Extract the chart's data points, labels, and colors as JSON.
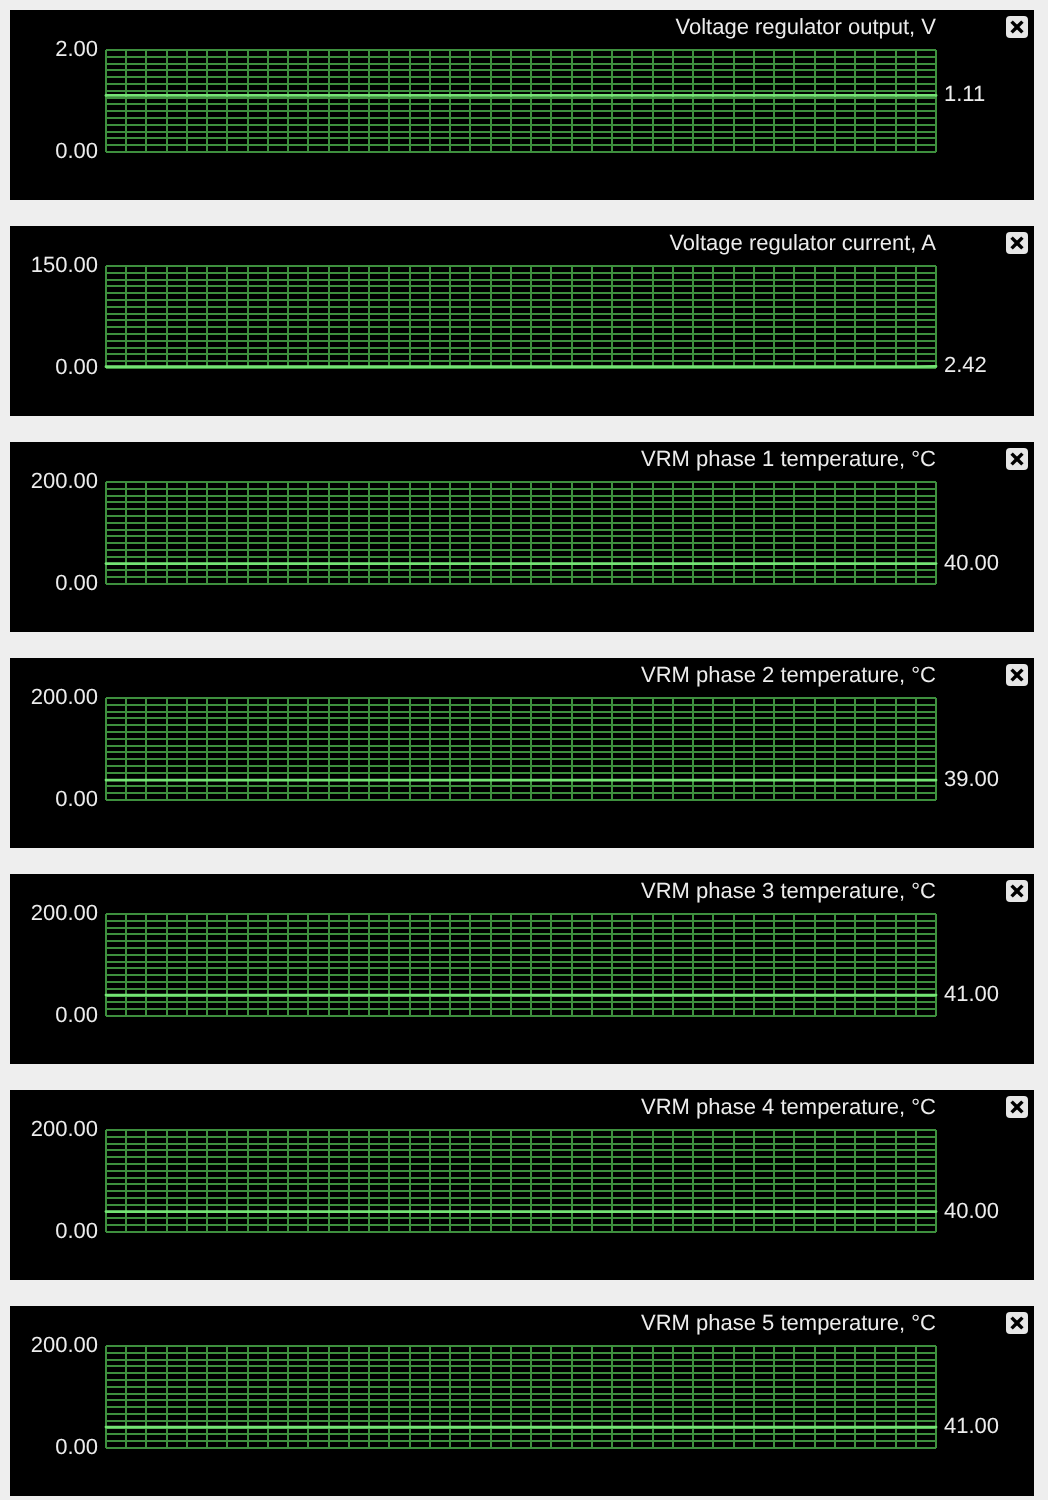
{
  "chart_data": [
    {
      "type": "line",
      "title": "Voltage regulator output, V",
      "categories": [
        null,
        null,
        null,
        null,
        null,
        null,
        null,
        null,
        null,
        null,
        null,
        null,
        null,
        null,
        null,
        null,
        null,
        null,
        null,
        null,
        null,
        null,
        null,
        null,
        null,
        null,
        null,
        null,
        null,
        null,
        null,
        null,
        null,
        null,
        null,
        null,
        null,
        null,
        null,
        null,
        null,
        null
      ],
      "series": [
        {
          "color": "#74e374",
          "values": [
            1.11,
            1.11,
            1.11,
            1.11,
            1.11,
            1.11,
            1.11,
            1.11,
            1.11,
            1.11,
            1.11,
            1.11,
            1.11,
            1.11,
            1.11,
            1.11,
            1.11,
            1.11,
            1.11,
            1.11,
            1.11,
            1.11,
            1.11,
            1.11,
            1.11,
            1.11,
            1.11,
            1.11,
            1.11,
            1.11,
            1.11,
            1.11,
            1.11,
            1.11,
            1.11,
            1.11,
            1.11,
            1.11,
            1.11,
            1.11,
            1.11,
            1.11
          ],
          "value_labels": [
            null,
            null,
            null,
            null,
            null,
            null,
            null,
            null,
            null,
            null,
            null,
            null,
            null,
            null,
            null,
            null,
            null,
            null,
            null,
            null,
            null,
            null,
            null,
            null,
            null,
            null,
            null,
            null,
            null,
            null,
            null,
            null,
            null,
            null,
            null,
            null,
            null,
            null,
            null,
            null,
            null,
            "1.11"
          ]
        }
      ],
      "ylim": [
        0,
        2
      ],
      "yticks": [
        {
          "value": 0,
          "label": "0.00"
        },
        {
          "value": 0.133,
          "label": null
        },
        {
          "value": 0.267,
          "label": null
        },
        {
          "value": 0.4,
          "label": null
        },
        {
          "value": 0.533,
          "label": null
        },
        {
          "value": 0.667,
          "label": null
        },
        {
          "value": 0.8,
          "label": null
        },
        {
          "value": 0.933,
          "label": null
        },
        {
          "value": 1.067,
          "label": null
        },
        {
          "value": 1.2,
          "label": null
        },
        {
          "value": 1.333,
          "label": null
        },
        {
          "value": 1.467,
          "label": null
        },
        {
          "value": 1.6,
          "label": null
        },
        {
          "value": 1.733,
          "label": null
        },
        {
          "value": 1.867,
          "label": null
        },
        {
          "value": 2,
          "label": "2.00"
        }
      ],
      "grid": true,
      "tick_labels": "y"
    },
    {
      "type": "line",
      "title": "Voltage regulator current, A",
      "categories": [
        null,
        null,
        null,
        null,
        null,
        null,
        null,
        null,
        null,
        null,
        null,
        null,
        null,
        null,
        null,
        null,
        null,
        null,
        null,
        null,
        null,
        null,
        null,
        null,
        null,
        null,
        null,
        null,
        null,
        null,
        null,
        null,
        null,
        null,
        null,
        null,
        null,
        null,
        null,
        null,
        null,
        null
      ],
      "series": [
        {
          "color": "#74e374",
          "values": [
            2,
            2,
            2,
            2,
            2,
            2,
            2,
            2,
            2,
            2,
            2,
            2,
            2,
            2,
            2,
            2,
            2,
            2,
            2,
            2,
            2,
            2,
            2,
            2,
            2,
            2,
            2,
            2,
            2,
            2,
            2,
            2,
            2,
            2,
            2,
            2,
            2,
            2,
            2,
            2,
            2,
            2.42
          ],
          "value_labels": [
            null,
            null,
            null,
            null,
            null,
            null,
            null,
            null,
            null,
            null,
            null,
            null,
            null,
            null,
            null,
            null,
            null,
            null,
            null,
            null,
            null,
            null,
            null,
            null,
            null,
            null,
            null,
            null,
            null,
            null,
            null,
            null,
            null,
            null,
            null,
            null,
            null,
            null,
            null,
            null,
            null,
            "2.42"
          ]
        }
      ],
      "ylim": [
        0,
        150
      ],
      "yticks": [
        {
          "value": 0,
          "label": "0.00"
        },
        {
          "value": 10,
          "label": null
        },
        {
          "value": 20,
          "label": null
        },
        {
          "value": 30,
          "label": null
        },
        {
          "value": 40,
          "label": null
        },
        {
          "value": 50,
          "label": null
        },
        {
          "value": 60,
          "label": null
        },
        {
          "value": 70,
          "label": null
        },
        {
          "value": 80,
          "label": null
        },
        {
          "value": 90,
          "label": null
        },
        {
          "value": 100,
          "label": null
        },
        {
          "value": 110,
          "label": null
        },
        {
          "value": 120,
          "label": null
        },
        {
          "value": 130,
          "label": null
        },
        {
          "value": 140,
          "label": null
        },
        {
          "value": 150,
          "label": "150.00"
        }
      ],
      "grid": true,
      "tick_labels": "y"
    },
    {
      "type": "line",
      "title": "VRM phase 1 temperature, °C",
      "categories": [
        null,
        null,
        null,
        null,
        null,
        null,
        null,
        null,
        null,
        null,
        null,
        null,
        null,
        null,
        null,
        null,
        null,
        null,
        null,
        null,
        null,
        null,
        null,
        null,
        null,
        null,
        null,
        null,
        null,
        null,
        null,
        null,
        null,
        null,
        null,
        null,
        null,
        null,
        null,
        null,
        null,
        null
      ],
      "series": [
        {
          "color": "#74e374",
          "values": [
            40,
            40,
            40,
            40,
            40,
            40,
            40,
            40,
            40,
            40,
            40,
            40,
            40,
            40,
            40,
            40,
            40,
            40,
            40,
            40,
            40,
            40,
            40,
            40,
            40,
            40,
            40,
            40,
            40,
            40,
            40,
            40,
            40,
            40,
            40,
            40,
            40,
            40,
            40,
            40,
            40,
            40
          ],
          "value_labels": [
            null,
            null,
            null,
            null,
            null,
            null,
            null,
            null,
            null,
            null,
            null,
            null,
            null,
            null,
            null,
            null,
            null,
            null,
            null,
            null,
            null,
            null,
            null,
            null,
            null,
            null,
            null,
            null,
            null,
            null,
            null,
            null,
            null,
            null,
            null,
            null,
            null,
            null,
            null,
            null,
            null,
            "40.00"
          ]
        }
      ],
      "ylim": [
        0,
        200
      ],
      "yticks": [
        {
          "value": 0,
          "label": "0.00"
        },
        {
          "value": 13.33,
          "label": null
        },
        {
          "value": 26.67,
          "label": null
        },
        {
          "value": 53.33,
          "label": null
        },
        {
          "value": 66.67,
          "label": null
        },
        {
          "value": 80,
          "label": null
        },
        {
          "value": 93.33,
          "label": null
        },
        {
          "value": 106.67,
          "label": null
        },
        {
          "value": 120,
          "label": null
        },
        {
          "value": 133.33,
          "label": null
        },
        {
          "value": 146.67,
          "label": null
        },
        {
          "value": 160,
          "label": null
        },
        {
          "value": 173.33,
          "label": null
        },
        {
          "value": 186.67,
          "label": null
        },
        {
          "value": 200,
          "label": "200.00"
        }
      ],
      "grid": true,
      "tick_labels": "y"
    },
    {
      "type": "line",
      "title": "VRM phase 2 temperature, °C",
      "categories": [
        null,
        null,
        null,
        null,
        null,
        null,
        null,
        null,
        null,
        null,
        null,
        null,
        null,
        null,
        null,
        null,
        null,
        null,
        null,
        null,
        null,
        null,
        null,
        null,
        null,
        null,
        null,
        null,
        null,
        null,
        null,
        null,
        null,
        null,
        null,
        null,
        null,
        null,
        null,
        null,
        null,
        null
      ],
      "series": [
        {
          "color": "#74e374",
          "values": [
            39,
            39,
            39,
            39,
            39,
            39,
            39,
            39,
            39,
            39,
            39,
            39,
            39,
            39,
            39,
            39,
            39,
            39,
            39,
            39,
            39,
            39,
            39,
            39,
            39,
            39,
            39,
            39,
            39,
            39,
            39,
            39,
            39,
            39,
            39,
            39,
            39,
            39,
            39,
            39,
            39,
            39
          ],
          "value_labels": [
            null,
            null,
            null,
            null,
            null,
            null,
            null,
            null,
            null,
            null,
            null,
            null,
            null,
            null,
            null,
            null,
            null,
            null,
            null,
            null,
            null,
            null,
            null,
            null,
            null,
            null,
            null,
            null,
            null,
            null,
            null,
            null,
            null,
            null,
            null,
            null,
            null,
            null,
            null,
            null,
            null,
            "39.00"
          ]
        }
      ],
      "ylim": [
        0,
        200
      ],
      "yticks": [
        {
          "value": 0,
          "label": "0.00"
        },
        {
          "value": 13.33,
          "label": null
        },
        {
          "value": 26.67,
          "label": null
        },
        {
          "value": 53.33,
          "label": null
        },
        {
          "value": 66.67,
          "label": null
        },
        {
          "value": 80,
          "label": null
        },
        {
          "value": 93.33,
          "label": null
        },
        {
          "value": 106.67,
          "label": null
        },
        {
          "value": 120,
          "label": null
        },
        {
          "value": 133.33,
          "label": null
        },
        {
          "value": 146.67,
          "label": null
        },
        {
          "value": 160,
          "label": null
        },
        {
          "value": 173.33,
          "label": null
        },
        {
          "value": 186.67,
          "label": null
        },
        {
          "value": 200,
          "label": "200.00"
        }
      ],
      "grid": true,
      "tick_labels": "y"
    },
    {
      "type": "line",
      "title": "VRM phase 3 temperature, °C",
      "categories": [
        null,
        null,
        null,
        null,
        null,
        null,
        null,
        null,
        null,
        null,
        null,
        null,
        null,
        null,
        null,
        null,
        null,
        null,
        null,
        null,
        null,
        null,
        null,
        null,
        null,
        null,
        null,
        null,
        null,
        null,
        null,
        null,
        null,
        null,
        null,
        null,
        null,
        null,
        null,
        null,
        null,
        null
      ],
      "series": [
        {
          "color": "#74e374",
          "values": [
            41,
            41,
            41,
            41,
            41,
            41,
            41,
            41,
            41,
            41,
            41,
            41,
            41,
            41,
            41,
            41,
            41,
            41,
            41,
            41,
            41,
            41,
            41,
            41,
            41,
            41,
            41,
            41,
            41,
            41,
            41,
            41,
            41,
            41,
            41,
            41,
            41,
            41,
            41,
            41,
            41,
            41
          ],
          "value_labels": [
            null,
            null,
            null,
            null,
            null,
            null,
            null,
            null,
            null,
            null,
            null,
            null,
            null,
            null,
            null,
            null,
            null,
            null,
            null,
            null,
            null,
            null,
            null,
            null,
            null,
            null,
            null,
            null,
            null,
            null,
            null,
            null,
            null,
            null,
            null,
            null,
            null,
            null,
            null,
            null,
            null,
            "41.00"
          ]
        }
      ],
      "ylim": [
        0,
        200
      ],
      "yticks": [
        {
          "value": 0,
          "label": "0.00"
        },
        {
          "value": 13.33,
          "label": null
        },
        {
          "value": 26.67,
          "label": null
        },
        {
          "value": 40,
          "label": null
        },
        {
          "value": 53.33,
          "label": null
        },
        {
          "value": 66.67,
          "label": null
        },
        {
          "value": 80,
          "label": null
        },
        {
          "value": 93.33,
          "label": null
        },
        {
          "value": 106.67,
          "label": null
        },
        {
          "value": 120,
          "label": null
        },
        {
          "value": 133.33,
          "label": null
        },
        {
          "value": 146.67,
          "label": null
        },
        {
          "value": 160,
          "label": null
        },
        {
          "value": 173.33,
          "label": null
        },
        {
          "value": 186.67,
          "label": null
        },
        {
          "value": 200,
          "label": "200.00"
        }
      ],
      "grid": true,
      "tick_labels": "y"
    },
    {
      "type": "line",
      "title": "VRM phase 4 temperature, °C",
      "categories": [
        null,
        null,
        null,
        null,
        null,
        null,
        null,
        null,
        null,
        null,
        null,
        null,
        null,
        null,
        null,
        null,
        null,
        null,
        null,
        null,
        null,
        null,
        null,
        null,
        null,
        null,
        null,
        null,
        null,
        null,
        null,
        null,
        null,
        null,
        null,
        null,
        null,
        null,
        null,
        null,
        null,
        null
      ],
      "series": [
        {
          "color": "#74e374",
          "values": [
            40,
            40,
            40,
            40,
            40,
            40,
            40,
            40,
            40,
            40,
            40,
            40,
            40,
            40,
            40,
            40,
            40,
            40,
            40,
            40,
            40,
            40,
            40,
            40,
            40,
            40,
            40,
            40,
            40,
            40,
            40,
            40,
            40,
            40,
            40,
            40,
            40,
            40,
            40,
            40,
            40,
            40
          ],
          "value_labels": [
            null,
            null,
            null,
            null,
            null,
            null,
            null,
            null,
            null,
            null,
            null,
            null,
            null,
            null,
            null,
            null,
            null,
            null,
            null,
            null,
            null,
            null,
            null,
            null,
            null,
            null,
            null,
            null,
            null,
            null,
            null,
            null,
            null,
            null,
            null,
            null,
            null,
            null,
            null,
            null,
            null,
            "40.00"
          ]
        }
      ],
      "ylim": [
        0,
        200
      ],
      "yticks": [
        {
          "value": 0,
          "label": "0.00"
        },
        {
          "value": 13.33,
          "label": null
        },
        {
          "value": 26.67,
          "label": null
        },
        {
          "value": 53.33,
          "label": null
        },
        {
          "value": 66.67,
          "label": null
        },
        {
          "value": 80,
          "label": null
        },
        {
          "value": 93.33,
          "label": null
        },
        {
          "value": 106.67,
          "label": null
        },
        {
          "value": 120,
          "label": null
        },
        {
          "value": 133.33,
          "label": null
        },
        {
          "value": 146.67,
          "label": null
        },
        {
          "value": 160,
          "label": null
        },
        {
          "value": 173.33,
          "label": null
        },
        {
          "value": 186.67,
          "label": null
        },
        {
          "value": 200,
          "label": "200.00"
        }
      ],
      "grid": true,
      "tick_labels": "y"
    },
    {
      "type": "line",
      "title": "VRM phase 5 temperature, °C",
      "categories": [
        null,
        null,
        null,
        null,
        null,
        null,
        null,
        null,
        null,
        null,
        null,
        null,
        null,
        null,
        null,
        null,
        null,
        null,
        null,
        null,
        null,
        null,
        null,
        null,
        null,
        null,
        null,
        null,
        null,
        null,
        null,
        null,
        null,
        null,
        null,
        null,
        null,
        null,
        null,
        null,
        null,
        null
      ],
      "series": [
        {
          "color": "#74e374",
          "values": [
            41,
            41,
            41,
            41,
            41,
            41,
            41,
            41,
            41,
            41,
            41,
            41,
            41,
            41,
            41,
            41,
            41,
            41,
            41,
            41,
            41,
            41,
            41,
            41,
            41,
            41,
            41,
            41,
            41,
            41,
            41,
            41,
            41,
            41,
            41,
            41,
            41,
            41,
            41,
            41,
            41,
            41
          ],
          "value_labels": [
            null,
            null,
            null,
            null,
            null,
            null,
            null,
            null,
            null,
            null,
            null,
            null,
            null,
            null,
            null,
            null,
            null,
            null,
            null,
            null,
            null,
            null,
            null,
            null,
            null,
            null,
            null,
            null,
            null,
            null,
            null,
            null,
            null,
            null,
            null,
            null,
            null,
            null,
            null,
            null,
            null,
            "41.00"
          ]
        }
      ],
      "ylim": [
        0,
        200
      ],
      "yticks": [
        {
          "value": 0,
          "label": "0.00"
        },
        {
          "value": 13.33,
          "label": null
        },
        {
          "value": 26.67,
          "label": null
        },
        {
          "value": 40,
          "label": null
        },
        {
          "value": 53.33,
          "label": null
        },
        {
          "value": 66.67,
          "label": null
        },
        {
          "value": 80,
          "label": null
        },
        {
          "value": 93.33,
          "label": null
        },
        {
          "value": 106.67,
          "label": null
        },
        {
          "value": 120,
          "label": null
        },
        {
          "value": 133.33,
          "label": null
        },
        {
          "value": 146.67,
          "label": null
        },
        {
          "value": 160,
          "label": null
        },
        {
          "value": 173.33,
          "label": null
        },
        {
          "value": 186.67,
          "label": null
        },
        {
          "value": 200,
          "label": "200.00"
        }
      ],
      "grid": true,
      "tick_labels": "y"
    }
  ]
}
